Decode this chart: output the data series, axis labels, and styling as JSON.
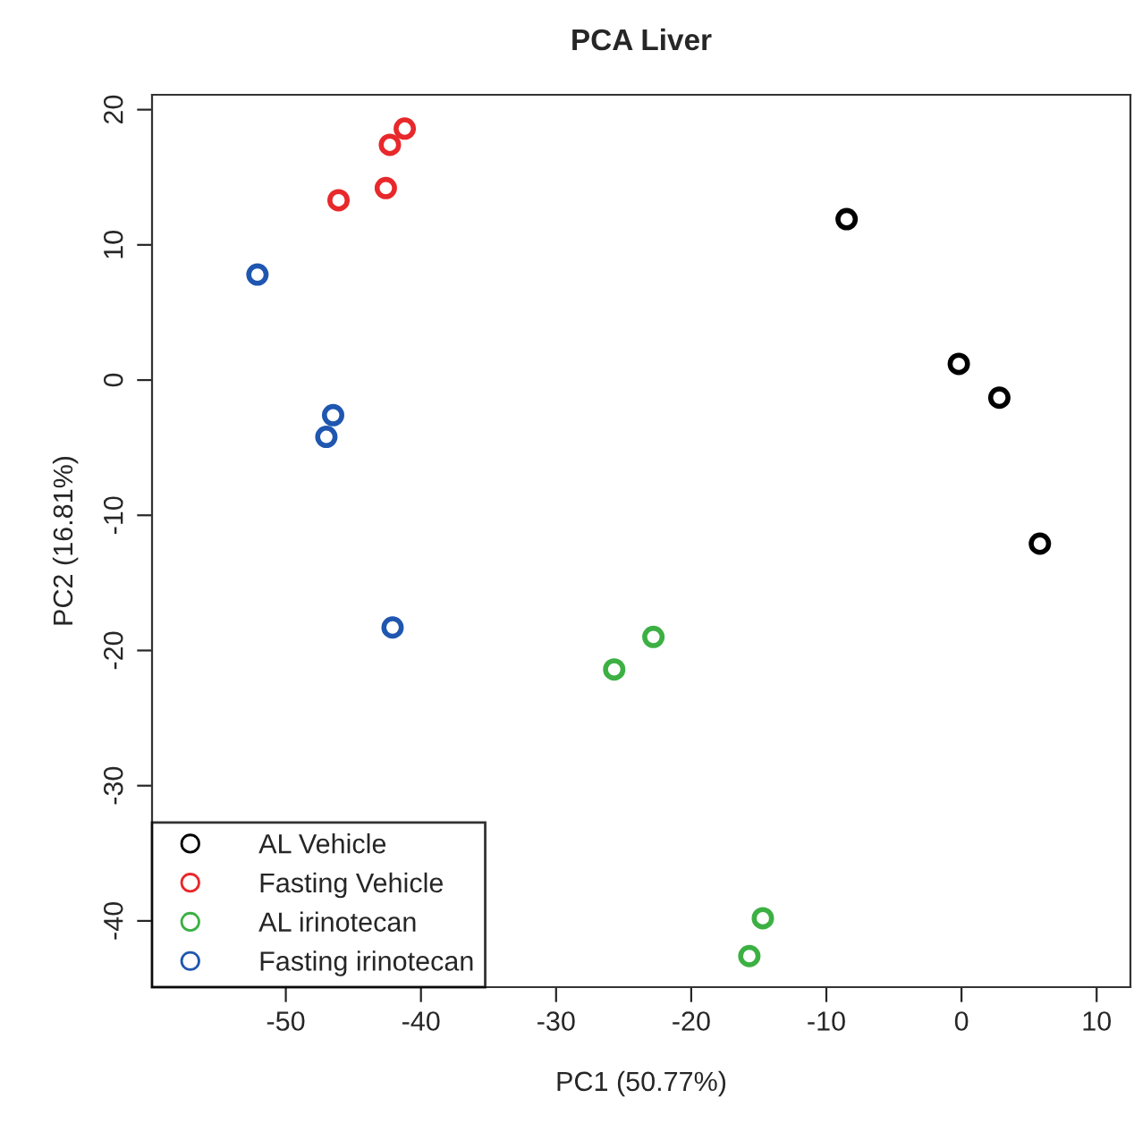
{
  "chart_data": {
    "type": "scatter",
    "title": "PCA Liver",
    "xlabel": "PC1 (50.77%)",
    "ylabel": "PC2 (16.81%)",
    "xlim": [
      -59.9,
      12.5
    ],
    "ylim": [
      -44.9,
      21.1
    ],
    "xticks": [
      -50,
      -40,
      -30,
      -20,
      -10,
      0,
      10
    ],
    "yticks": [
      -40,
      -30,
      -20,
      -10,
      0,
      10,
      20
    ],
    "marker": "circle",
    "legend": "bottom left",
    "grid": false,
    "series": [
      {
        "name": "AL Vehicle",
        "color": "#000000",
        "x": [
          -8.5,
          -0.2,
          2.8,
          5.8
        ],
        "values": [
          11.9,
          1.2,
          -1.3,
          -12.1
        ]
      },
      {
        "name": "Fasting Vehicle",
        "color": "#e8282b",
        "x": [
          -46.1,
          -42.6,
          -42.3,
          -41.2
        ],
        "values": [
          13.3,
          14.2,
          17.4,
          18.6
        ]
      },
      {
        "name": "AL irinotecan",
        "color": "#3cb043",
        "x": [
          -25.7,
          -22.8,
          -14.7,
          -15.7
        ],
        "values": [
          -21.4,
          -19.0,
          -39.8,
          -42.6
        ]
      },
      {
        "name": "Fasting irinotecan",
        "color": "#1f56b0",
        "x": [
          -52.1,
          -46.5,
          -47.0,
          -42.1
        ],
        "values": [
          7.8,
          -2.6,
          -4.2,
          -18.3
        ]
      }
    ]
  }
}
